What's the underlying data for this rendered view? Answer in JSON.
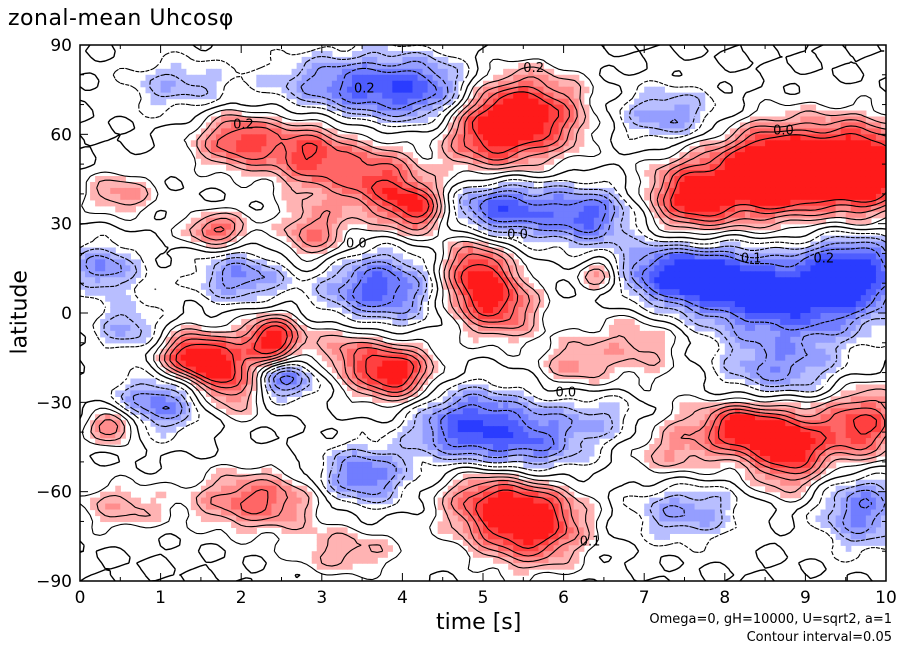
{
  "chart_data": {
    "type": "heatmap",
    "title": "zonal-mean Uhcosφ",
    "xlabel": "time [s]",
    "ylabel": "latitude",
    "xlim": [
      0,
      10
    ],
    "ylim": [
      -90,
      90
    ],
    "xticks": [
      "0",
      "1",
      "2",
      "3",
      "4",
      "5",
      "6",
      "7",
      "8",
      "9",
      "10"
    ],
    "yticks": [
      "90",
      "60",
      "30",
      "0",
      "−30",
      "−60",
      "−90"
    ],
    "colormap": {
      "negative": "#2a3cff",
      "zero": "#ffffff",
      "positive": "#ff1a1a"
    },
    "contour_interval": 0.05,
    "annotations": [
      {
        "text": "0.2",
        "x": 3.4,
        "y": 74
      },
      {
        "text": "0.2",
        "x": 5.5,
        "y": 81
      },
      {
        "text": "0.2",
        "x": 1.9,
        "y": 62
      },
      {
        "text": "0.0",
        "x": 8.6,
        "y": 60
      },
      {
        "text": "0.0",
        "x": 3.3,
        "y": 22
      },
      {
        "text": "0.0",
        "x": 5.3,
        "y": 25
      },
      {
        "text": "0.2",
        "x": 9.1,
        "y": 17
      },
      {
        "text": "0.1",
        "x": 8.2,
        "y": 17
      },
      {
        "text": "0.0",
        "x": 5.9,
        "y": -28
      },
      {
        "text": "0.1",
        "x": 6.2,
        "y": -78
      }
    ],
    "blobs": [
      {
        "x": 5.5,
        "y": 66,
        "v": 0.95,
        "sx": 0.55,
        "sy": 10
      },
      {
        "x": 5.0,
        "y": 60,
        "v": 0.45,
        "sx": 0.4,
        "sy": 12
      },
      {
        "x": 2.0,
        "y": 58,
        "v": 0.75,
        "sx": 0.4,
        "sy": 7
      },
      {
        "x": 2.9,
        "y": 53,
        "v": 0.7,
        "sx": 0.35,
        "sy": 9
      },
      {
        "x": 3.7,
        "y": 44,
        "v": 0.7,
        "sx": 0.35,
        "sy": 9
      },
      {
        "x": 4.2,
        "y": 35,
        "v": 0.8,
        "sx": 0.25,
        "sy": 6
      },
      {
        "x": 1.7,
        "y": 28,
        "v": 0.65,
        "sx": 0.28,
        "sy": 4
      },
      {
        "x": 2.9,
        "y": 26,
        "v": 0.55,
        "sx": 0.3,
        "sy": 7
      },
      {
        "x": 0.5,
        "y": 40,
        "v": 0.45,
        "sx": 0.3,
        "sy": 5
      },
      {
        "x": 8.6,
        "y": 45,
        "v": 0.95,
        "sx": 0.45,
        "sy": 10
      },
      {
        "x": 9.7,
        "y": 47,
        "v": 0.95,
        "sx": 0.4,
        "sy": 10
      },
      {
        "x": 7.6,
        "y": 38,
        "v": 0.85,
        "sx": 0.4,
        "sy": 9
      },
      {
        "x": 9.0,
        "y": 52,
        "v": 0.55,
        "sx": 0.9,
        "sy": 10
      },
      {
        "x": 4.9,
        "y": 12,
        "v": 0.9,
        "sx": 0.3,
        "sy": 10
      },
      {
        "x": 5.3,
        "y": 2,
        "v": 0.55,
        "sx": 0.3,
        "sy": 8
      },
      {
        "x": 6.45,
        "y": 13,
        "v": 0.55,
        "sx": 0.2,
        "sy": 4
      },
      {
        "x": 2.4,
        "y": -9,
        "v": 0.95,
        "sx": 0.25,
        "sy": 6
      },
      {
        "x": 1.4,
        "y": -15,
        "v": 0.95,
        "sx": 0.3,
        "sy": 6
      },
      {
        "x": 1.9,
        "y": -22,
        "v": 0.75,
        "sx": 0.3,
        "sy": 8
      },
      {
        "x": 0.4,
        "y": -38,
        "v": 0.7,
        "sx": 0.2,
        "sy": 4
      },
      {
        "x": 3.9,
        "y": -20,
        "v": 0.95,
        "sx": 0.35,
        "sy": 7
      },
      {
        "x": 3.3,
        "y": -12,
        "v": 0.45,
        "sx": 0.3,
        "sy": 7
      },
      {
        "x": 5.6,
        "y": -70,
        "v": 1.0,
        "sx": 0.45,
        "sy": 10
      },
      {
        "x": 5.0,
        "y": -62,
        "v": 0.55,
        "sx": 0.4,
        "sy": 9
      },
      {
        "x": 2.2,
        "y": -63,
        "v": 0.65,
        "sx": 0.55,
        "sy": 7
      },
      {
        "x": 8.8,
        "y": -45,
        "v": 0.95,
        "sx": 0.35,
        "sy": 10
      },
      {
        "x": 8.2,
        "y": -38,
        "v": 0.8,
        "sx": 0.3,
        "sy": 6
      },
      {
        "x": 9.7,
        "y": -38,
        "v": 0.8,
        "sx": 0.35,
        "sy": 10
      },
      {
        "x": 7.4,
        "y": -45,
        "v": 0.45,
        "sx": 0.5,
        "sy": 12
      },
      {
        "x": 6.9,
        "y": -10,
        "v": 0.35,
        "sx": 0.5,
        "sy": 10
      },
      {
        "x": 6.1,
        "y": -18,
        "v": 0.35,
        "sx": 0.3,
        "sy": 6
      },
      {
        "x": 3.3,
        "y": -80,
        "v": 0.35,
        "sx": 0.5,
        "sy": 6
      },
      {
        "x": 0.5,
        "y": -65,
        "v": 0.35,
        "sx": 0.4,
        "sy": 6
      },
      {
        "x": 5.2,
        "y": 35,
        "v": -0.85,
        "sx": 0.45,
        "sy": 7
      },
      {
        "x": 6.3,
        "y": 33,
        "v": -0.7,
        "sx": 0.4,
        "sy": 7
      },
      {
        "x": 7.5,
        "y": 13,
        "v": -0.9,
        "sx": 0.6,
        "sy": 8
      },
      {
        "x": 8.8,
        "y": 5,
        "v": -0.85,
        "sx": 0.8,
        "sy": 10
      },
      {
        "x": 9.6,
        "y": 15,
        "v": -0.8,
        "sx": 0.4,
        "sy": 8
      },
      {
        "x": 3.7,
        "y": 8,
        "v": -0.75,
        "sx": 0.5,
        "sy": 9
      },
      {
        "x": 2.0,
        "y": 12,
        "v": -0.55,
        "sx": 0.4,
        "sy": 6
      },
      {
        "x": 3.4,
        "y": 76,
        "v": -0.65,
        "sx": 0.7,
        "sy": 8
      },
      {
        "x": 4.4,
        "y": 74,
        "v": -0.55,
        "sx": 0.5,
        "sy": 8
      },
      {
        "x": 1.2,
        "y": 76,
        "v": -0.35,
        "sx": 0.5,
        "sy": 7
      },
      {
        "x": 7.3,
        "y": 66,
        "v": -0.5,
        "sx": 0.5,
        "sy": 7
      },
      {
        "x": 2.5,
        "y": -22,
        "v": -0.75,
        "sx": 0.3,
        "sy": 5
      },
      {
        "x": 1.0,
        "y": -30,
        "v": -0.6,
        "sx": 0.4,
        "sy": 7
      },
      {
        "x": 4.8,
        "y": -38,
        "v": -0.75,
        "sx": 0.5,
        "sy": 9
      },
      {
        "x": 5.6,
        "y": -45,
        "v": -0.55,
        "sx": 0.5,
        "sy": 9
      },
      {
        "x": 3.5,
        "y": -55,
        "v": -0.65,
        "sx": 0.4,
        "sy": 7
      },
      {
        "x": 7.5,
        "y": -65,
        "v": -0.55,
        "sx": 0.5,
        "sy": 8
      },
      {
        "x": 9.7,
        "y": -65,
        "v": -0.6,
        "sx": 0.4,
        "sy": 10
      },
      {
        "x": 8.7,
        "y": -20,
        "v": -0.5,
        "sx": 0.6,
        "sy": 8
      },
      {
        "x": 0.3,
        "y": 15,
        "v": -0.55,
        "sx": 0.3,
        "sy": 6
      },
      {
        "x": 0.6,
        "y": -5,
        "v": -0.4,
        "sx": 0.3,
        "sy": 6
      },
      {
        "x": 6.6,
        "y": -35,
        "v": -0.35,
        "sx": 0.5,
        "sy": 7
      }
    ]
  },
  "notes": {
    "params": "Omega=0, gH=10000, U=sqrt2, a=1",
    "interval": "Contour interval=0.05"
  }
}
